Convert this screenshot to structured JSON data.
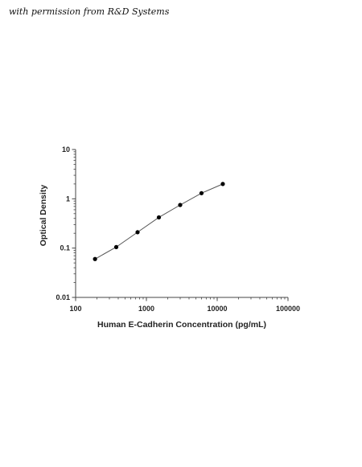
{
  "credit_text": "with permission from R&D Systems",
  "chart_data": {
    "type": "scatter",
    "title": "",
    "xlabel": "Human E-Cadherin Concentration (pg/mL)",
    "ylabel": "Optical Density",
    "x_scale": "log",
    "y_scale": "log",
    "xlim": [
      100,
      100000
    ],
    "ylim": [
      0.01,
      10
    ],
    "x_ticks": [
      100,
      1000,
      10000,
      100000
    ],
    "x_tick_labels": [
      "100",
      "1000",
      "10000",
      "100000"
    ],
    "y_ticks": [
      0.01,
      0.1,
      1,
      10
    ],
    "y_tick_labels": [
      "0.01",
      "0.1",
      "1",
      "10"
    ],
    "grid": false,
    "fit_line": true,
    "series": [
      {
        "x": [
          188,
          375,
          750,
          1500,
          3000,
          6000,
          12000
        ],
        "y": [
          0.06,
          0.105,
          0.21,
          0.42,
          0.75,
          1.3,
          2.0
        ]
      }
    ],
    "colors": {
      "points": "#000000",
      "line": "#555555",
      "axis": "#444444"
    }
  }
}
